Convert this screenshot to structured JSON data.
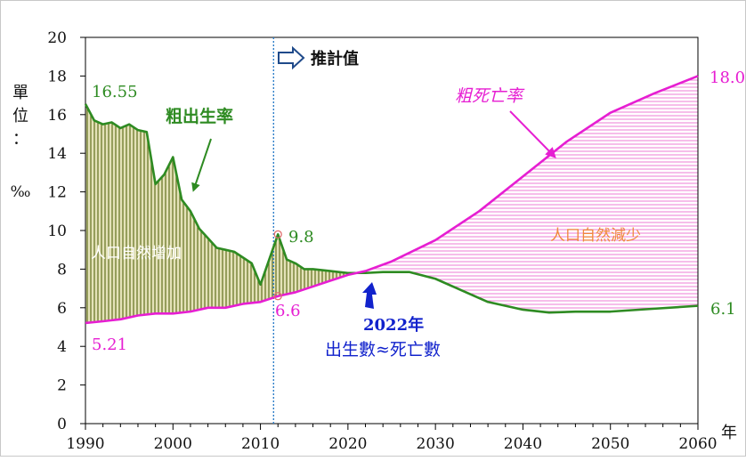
{
  "chart_data": {
    "type": "line",
    "xlabel": "年",
    "ylabel": "單位：‰",
    "ylabel_chars": [
      "單",
      "位",
      "：",
      "‰"
    ],
    "xlim": [
      1990,
      2060
    ],
    "ylim": [
      0,
      20
    ],
    "x_ticks": [
      "1990",
      "2000",
      "2010",
      "2020",
      "2030",
      "2040",
      "2050",
      "2060"
    ],
    "y_ticks": [
      "0",
      "2",
      "4",
      "6",
      "8",
      "10",
      "12",
      "14",
      "16",
      "18",
      "20"
    ],
    "grid": false,
    "projection_start": 2011.5,
    "projection_label": "推計值",
    "series": [
      {
        "name": "粗出生率",
        "color": "#2e8b22",
        "points": [
          [
            1990,
            16.55
          ],
          [
            1991,
            15.7
          ],
          [
            1992,
            15.5
          ],
          [
            1993,
            15.6
          ],
          [
            1994,
            15.3
          ],
          [
            1995,
            15.5
          ],
          [
            1996,
            15.2
          ],
          [
            1997,
            15.1
          ],
          [
            1998,
            12.4
          ],
          [
            1999,
            12.9
          ],
          [
            2000,
            13.8
          ],
          [
            2001,
            11.6
          ],
          [
            2002,
            11.0
          ],
          [
            2003,
            10.1
          ],
          [
            2004,
            9.6
          ],
          [
            2005,
            9.1
          ],
          [
            2006,
            9.0
          ],
          [
            2007,
            8.9
          ],
          [
            2008,
            8.6
          ],
          [
            2009,
            8.3
          ],
          [
            2010,
            7.2
          ],
          [
            2011,
            8.5
          ],
          [
            2012,
            9.8
          ],
          [
            2013,
            8.5
          ],
          [
            2014,
            8.3
          ],
          [
            2015,
            8.0
          ],
          [
            2016,
            8.0
          ],
          [
            2018,
            7.9
          ],
          [
            2020,
            7.8
          ],
          [
            2022,
            7.8
          ],
          [
            2024,
            7.85
          ],
          [
            2027,
            7.85
          ],
          [
            2030,
            7.5
          ],
          [
            2033,
            6.9
          ],
          [
            2036,
            6.3
          ],
          [
            2040,
            5.9
          ],
          [
            2043,
            5.75
          ],
          [
            2046,
            5.8
          ],
          [
            2050,
            5.8
          ],
          [
            2055,
            5.95
          ],
          [
            2060,
            6.1
          ]
        ]
      },
      {
        "name": "粗死亡率",
        "color": "#e61ed2",
        "points": [
          [
            1990,
            5.21
          ],
          [
            1992,
            5.3
          ],
          [
            1994,
            5.4
          ],
          [
            1996,
            5.6
          ],
          [
            1998,
            5.7
          ],
          [
            2000,
            5.7
          ],
          [
            2002,
            5.8
          ],
          [
            2004,
            6.0
          ],
          [
            2006,
            6.0
          ],
          [
            2008,
            6.2
          ],
          [
            2010,
            6.3
          ],
          [
            2012,
            6.6
          ],
          [
            2014,
            6.8
          ],
          [
            2016,
            7.1
          ],
          [
            2018,
            7.4
          ],
          [
            2020,
            7.7
          ],
          [
            2022,
            7.9
          ],
          [
            2025,
            8.4
          ],
          [
            2030,
            9.5
          ],
          [
            2035,
            11.0
          ],
          [
            2040,
            12.8
          ],
          [
            2045,
            14.6
          ],
          [
            2050,
            16.1
          ],
          [
            2055,
            17.1
          ],
          [
            2060,
            18.0
          ]
        ]
      }
    ],
    "annotations": {
      "birth_start": "16.55",
      "death_start": "5.21",
      "birth_2012": "9.8",
      "death_2012": "6.6",
      "death_end": "18.0",
      "birth_end": "6.1",
      "birth_label": "粗出生率",
      "death_label": "粗死亡率",
      "increase_label": "人口自然增加",
      "decrease_label": "人口自然減少",
      "cross_year": "2022年",
      "cross_text": "出生數≈死亡數"
    }
  },
  "colors": {
    "birth": "#2e8b22",
    "death": "#e61ed2",
    "increase_fill": "#6b7a2a",
    "increase_bg": "#e4e2b8",
    "decrease_hatch": "#f08ad8",
    "decrease_label": "#f0883c",
    "arrow_blue": "#1122cc",
    "projection_line": "#2f7fc9",
    "axis": "#000000"
  }
}
